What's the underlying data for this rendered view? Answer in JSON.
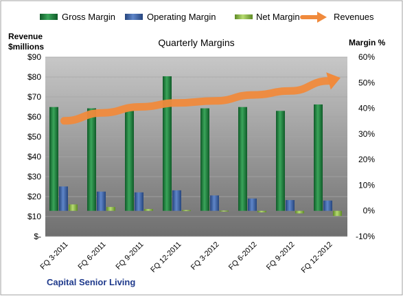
{
  "chart_data": {
    "type": "bar",
    "title": "Quarterly Margins",
    "company": "Capital Senior Living",
    "left_axis": {
      "label_line1": "Revenue",
      "label_line2": "$millions",
      "range": [
        0,
        90
      ],
      "ticks": [
        "$-",
        "$10",
        "$20",
        "$30",
        "$40",
        "$50",
        "$60",
        "$70",
        "$80",
        "$90"
      ]
    },
    "right_axis": {
      "label": "Margin %",
      "range": [
        -10,
        60
      ],
      "ticks": [
        "-10%",
        "0%",
        "10%",
        "20%",
        "30%",
        "40%",
        "50%",
        "60%"
      ]
    },
    "categories": [
      "FQ 3-2011",
      "FQ 6-2011",
      "FQ 9-2011",
      "FQ 12-2011",
      "FQ 3-2012",
      "FQ 6-2012",
      "FQ 9-2012",
      "FQ 12-2012"
    ],
    "series": [
      {
        "name": "Gross Margin",
        "axis": "right",
        "type": "bar",
        "color": "#1e7a3c",
        "values": [
          40.5,
          40.0,
          39.0,
          52.5,
          40.0,
          40.5,
          39.0,
          41.5
        ]
      },
      {
        "name": "Operating Margin",
        "axis": "right",
        "type": "bar",
        "color": "#3a5d9e",
        "values": [
          9.5,
          7.5,
          7.2,
          8.0,
          6.0,
          4.8,
          4.2,
          4.0
        ]
      },
      {
        "name": "Net Margin",
        "axis": "right",
        "type": "bar",
        "color": "#8ab848",
        "values": [
          2.5,
          1.5,
          0.7,
          0.3,
          0.1,
          -0.6,
          -1.0,
          -2.0
        ]
      },
      {
        "name": "Revenues",
        "axis": "left",
        "type": "line",
        "color": "#f08a3c",
        "values": [
          58,
          62,
          65,
          67,
          68,
          71,
          73,
          78
        ]
      }
    ],
    "grid": true,
    "legend_position": "top"
  }
}
